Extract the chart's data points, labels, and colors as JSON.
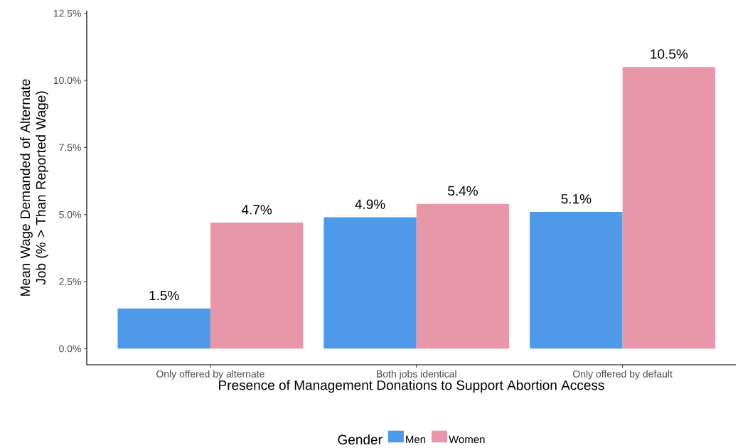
{
  "chart_data": {
    "type": "bar",
    "xlabel": "Presence of Management Donations to Support Abortion Access",
    "ylabel": "Mean Wage Demanded of Alternate Job (% > Than Reported Wage)",
    "categories": [
      "Only offered by alternate",
      "Both jobs identical",
      "Only offered by default"
    ],
    "series": [
      {
        "name": "Men",
        "color": "#4e9ae8",
        "values": [
          1.5,
          4.9,
          5.1
        ],
        "value_labels": [
          "1.5%",
          "4.9%",
          "5.1%"
        ]
      },
      {
        "name": "Women",
        "color": "#e897aa",
        "values": [
          4.7,
          5.4,
          10.5
        ],
        "value_labels": [
          "4.7%",
          "5.4%",
          "10.5%"
        ]
      }
    ],
    "ylim": [
      -0.6,
      12.6
    ],
    "yticks": [
      {
        "value": 0,
        "label": "0.0%"
      },
      {
        "value": 2.5,
        "label": "2.5%"
      },
      {
        "value": 5,
        "label": "5.0%"
      },
      {
        "value": 7.5,
        "label": "7.5%"
      },
      {
        "value": 10,
        "label": "10.0%"
      },
      {
        "value": 12.5,
        "label": "12.5%"
      }
    ],
    "legend_title": "Gender",
    "legend": "bottom",
    "grid": false
  }
}
